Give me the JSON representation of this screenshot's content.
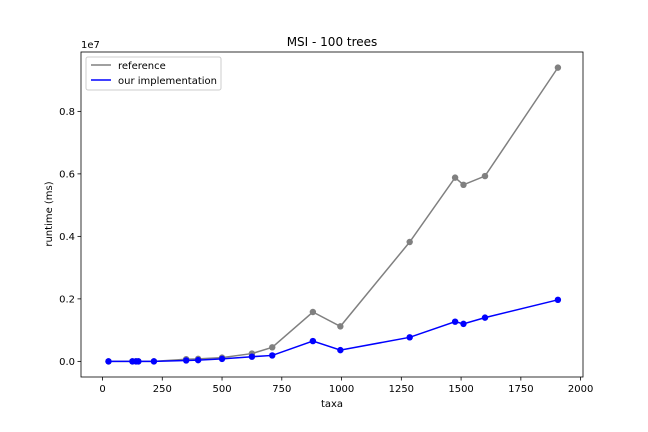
{
  "chart_data": {
    "type": "line",
    "title": "MSI - 100 trees",
    "xlabel": "taxa",
    "ylabel": "runtime (ms)",
    "y_scale_label": "1e7",
    "xlim": [
      -90,
      2010
    ],
    "ylim": [
      -0.05,
      0.99
    ],
    "y_unit_multiplier": 10000000,
    "x_ticks": [
      0,
      250,
      500,
      750,
      1000,
      1250,
      1500,
      1750,
      2000
    ],
    "x_tick_labels": [
      "0",
      "250",
      "500",
      "750",
      "1000",
      "1250",
      "1500",
      "1750",
      "2000"
    ],
    "y_ticks": [
      0.0,
      0.2,
      0.4,
      0.6,
      0.8
    ],
    "y_tick_labels": [
      "0.0",
      "0.2",
      "0.4",
      "0.6",
      "0.8"
    ],
    "grid": false,
    "legend_position": "top-left",
    "series": [
      {
        "name": "reference",
        "color": "#808080",
        "x": [
          25,
          125,
          140,
          150,
          215,
          350,
          400,
          500,
          625,
          710,
          880,
          995,
          1285,
          1475,
          1510,
          1600,
          1905
        ],
        "y": [
          0.0,
          0.0,
          0.0,
          0.0,
          0.0,
          0.007,
          0.008,
          0.012,
          0.025,
          0.045,
          0.158,
          0.112,
          0.382,
          0.588,
          0.565,
          0.593,
          0.94
        ]
      },
      {
        "name": "our implementation",
        "color": "#0000ff",
        "x": [
          25,
          125,
          140,
          150,
          215,
          350,
          400,
          500,
          625,
          710,
          880,
          995,
          1285,
          1475,
          1510,
          1600,
          1905
        ],
        "y": [
          0.0,
          0.0,
          0.0,
          0.0,
          0.0,
          0.003,
          0.004,
          0.008,
          0.015,
          0.019,
          0.065,
          0.036,
          0.077,
          0.127,
          0.12,
          0.14,
          0.197
        ]
      }
    ]
  }
}
